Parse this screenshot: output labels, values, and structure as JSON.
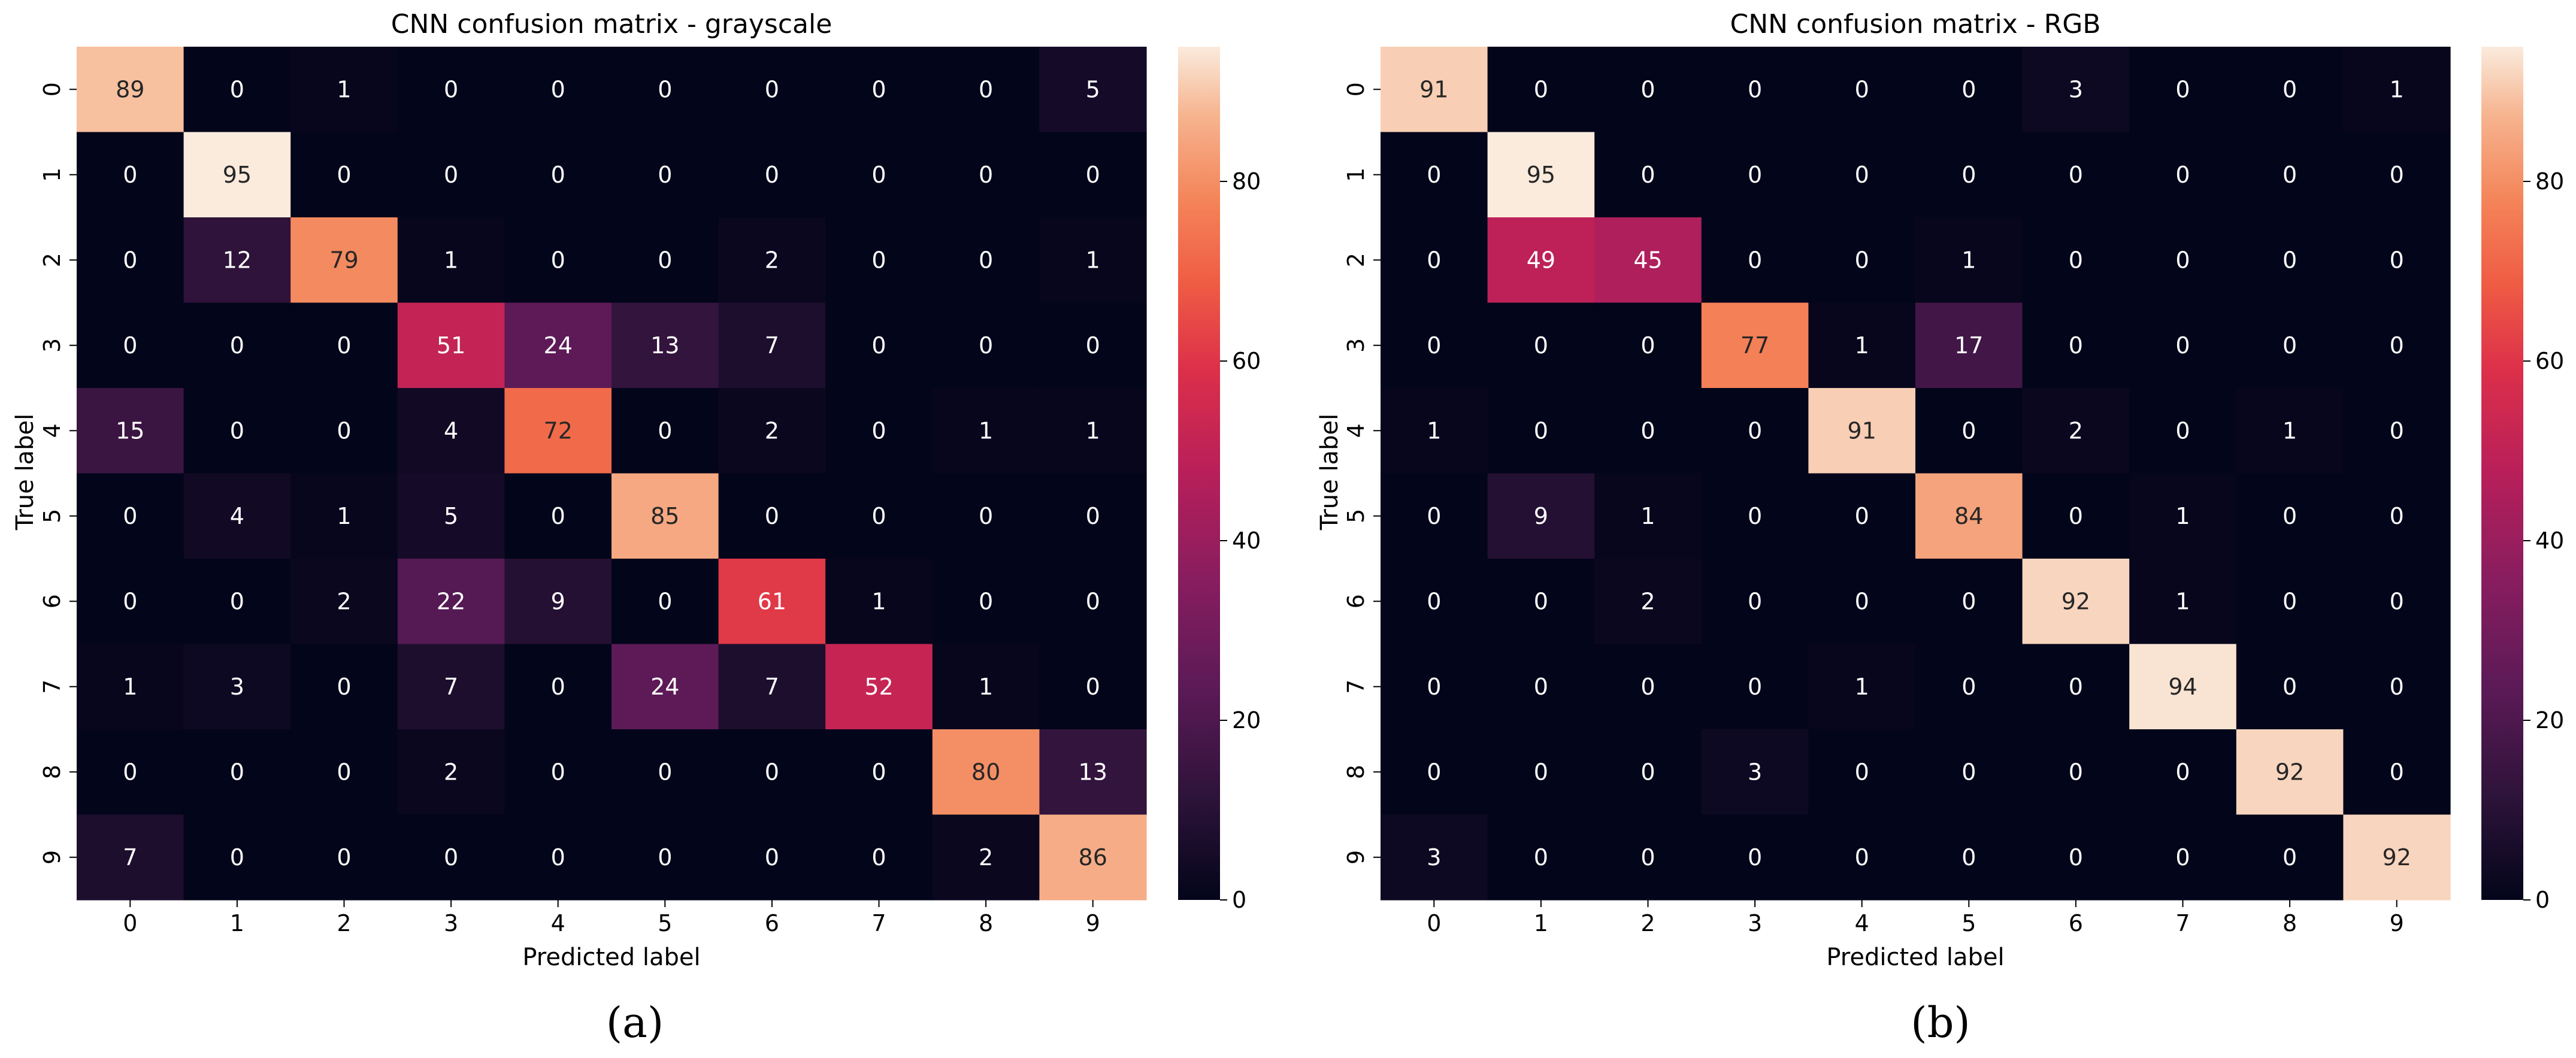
{
  "chart_data": [
    {
      "type": "heatmap",
      "title": "CNN confusion matrix - grayscale",
      "xlabel": "Predicted label",
      "ylabel": "True label",
      "x_tick_labels": [
        "0",
        "1",
        "2",
        "3",
        "4",
        "5",
        "6",
        "7",
        "8",
        "9"
      ],
      "y_tick_labels": [
        "0",
        "1",
        "2",
        "3",
        "4",
        "5",
        "6",
        "7",
        "8",
        "9"
      ],
      "values": [
        [
          89,
          0,
          1,
          0,
          0,
          0,
          0,
          0,
          0,
          5
        ],
        [
          0,
          95,
          0,
          0,
          0,
          0,
          0,
          0,
          0,
          0
        ],
        [
          0,
          12,
          79,
          1,
          0,
          0,
          2,
          0,
          0,
          1
        ],
        [
          0,
          0,
          0,
          51,
          24,
          13,
          7,
          0,
          0,
          0
        ],
        [
          15,
          0,
          0,
          4,
          72,
          0,
          2,
          0,
          1,
          1
        ],
        [
          0,
          4,
          1,
          5,
          0,
          85,
          0,
          0,
          0,
          0
        ],
        [
          0,
          0,
          2,
          22,
          9,
          0,
          61,
          1,
          0,
          0
        ],
        [
          1,
          3,
          0,
          7,
          0,
          24,
          7,
          52,
          1,
          0
        ],
        [
          0,
          0,
          0,
          2,
          0,
          0,
          0,
          0,
          80,
          13
        ],
        [
          7,
          0,
          0,
          0,
          0,
          0,
          0,
          0,
          2,
          86
        ]
      ],
      "colorbar": {
        "vmin": 0,
        "vmax": 95,
        "ticks": [
          "0",
          "20",
          "40",
          "60",
          "80"
        ],
        "colormap": "rocket"
      },
      "panel_label": "(a)"
    },
    {
      "type": "heatmap",
      "title": "CNN confusion matrix - RGB",
      "xlabel": "Predicted label",
      "ylabel": "True label",
      "x_tick_labels": [
        "0",
        "1",
        "2",
        "3",
        "4",
        "5",
        "6",
        "7",
        "8",
        "9"
      ],
      "y_tick_labels": [
        "0",
        "1",
        "2",
        "3",
        "4",
        "5",
        "6",
        "7",
        "8",
        "9"
      ],
      "values": [
        [
          91,
          0,
          0,
          0,
          0,
          0,
          3,
          0,
          0,
          1
        ],
        [
          0,
          95,
          0,
          0,
          0,
          0,
          0,
          0,
          0,
          0
        ],
        [
          0,
          49,
          45,
          0,
          0,
          1,
          0,
          0,
          0,
          0
        ],
        [
          0,
          0,
          0,
          77,
          1,
          17,
          0,
          0,
          0,
          0
        ],
        [
          1,
          0,
          0,
          0,
          91,
          0,
          2,
          0,
          1,
          0
        ],
        [
          0,
          9,
          1,
          0,
          0,
          84,
          0,
          1,
          0,
          0
        ],
        [
          0,
          0,
          2,
          0,
          0,
          0,
          92,
          1,
          0,
          0
        ],
        [
          0,
          0,
          0,
          0,
          1,
          0,
          0,
          94,
          0,
          0
        ],
        [
          0,
          0,
          0,
          3,
          0,
          0,
          0,
          0,
          92,
          0
        ],
        [
          3,
          0,
          0,
          0,
          0,
          0,
          0,
          0,
          0,
          92
        ]
      ],
      "colorbar": {
        "vmin": 0,
        "vmax": 95,
        "ticks": [
          "0",
          "20",
          "40",
          "60",
          "80"
        ],
        "colormap": "rocket"
      },
      "panel_label": "(b)"
    }
  ]
}
